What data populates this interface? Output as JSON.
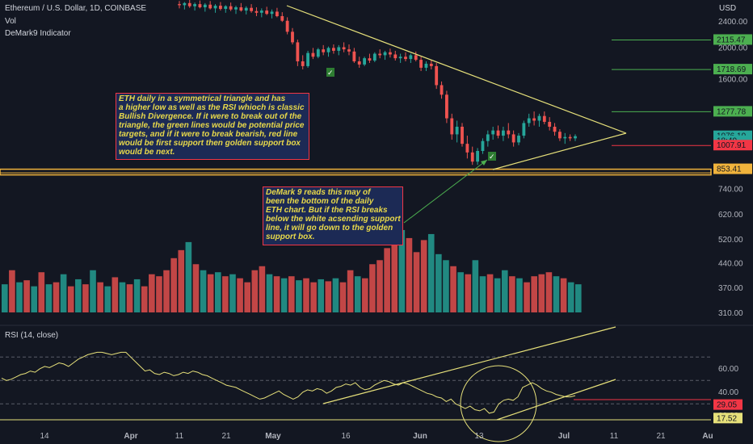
{
  "header": {
    "symbol": "Ethereum / U.S. Dollar, 1D, COINBASE",
    "vol_label": "Vol",
    "indicator_label": "DeMark9 Indicator"
  },
  "price_scale": {
    "currency": "USD"
  },
  "colors": {
    "background": "#131722",
    "up": "#26a69a",
    "down": "#ef5350",
    "triangle": "#e6e07a",
    "golden_support": "#f0b33c",
    "target_lines": "#4caf50",
    "support_red": "#f23645",
    "note_background": "#1c2a55",
    "note_text": "#e8d94a"
  },
  "annotations": {
    "note1": [
      "ETH daily in a symmetrical triangle and has",
      "a higher low as well as the RSI whioch is classic",
      "Bullish Divergence. If it were to break out of the",
      "triangle, the green lines would be potential price",
      "targets, and if it were to break bearish, red line",
      " would be first support then golden support box",
      "would be next."
    ],
    "note2": [
      "DeMark 9 reads this may of",
      "been the bottom of the daily",
      "ETH chart. But if the RSI breaks",
      "below the white acsending support",
      "line, it will go down to the golden",
      "support box."
    ]
  },
  "chart_data": [
    {
      "type": "candlestick",
      "title": "Ethereum / U.S. Dollar, 1D, COINBASE",
      "y_scale": "log",
      "ylim": [
        290,
        2800
      ],
      "y_ticks": [
        "2400.00",
        "2000.00",
        "1600.00",
        "740.00",
        "620.00",
        "520.00",
        "440.00",
        "370.00",
        "310.00"
      ],
      "x_tick_labels": [
        "14",
        "Apr",
        "11",
        "21",
        "May",
        "16",
        "Jun",
        "13",
        "Jul",
        "11",
        "21",
        "Au"
      ],
      "price_badges": [
        {
          "label": "2115.47",
          "value": 2115.47,
          "color": "#4caf50"
        },
        {
          "label": "1718.69",
          "value": 1718.69,
          "color": "#4caf50"
        },
        {
          "label": "1277.78",
          "value": 1277.78,
          "color": "#4caf50"
        },
        {
          "label": "1076.10",
          "value": 1076.1,
          "color": "#26a69a"
        },
        {
          "label": "18:40",
          "value": 1040,
          "color": "#26a69a"
        },
        {
          "label": "1007.91",
          "value": 1007.91,
          "color": "#f23645"
        },
        {
          "label": "853.41",
          "value": 853.41,
          "color": "#f0b33c"
        }
      ],
      "horizontal_lines": [
        {
          "value": 2115.47,
          "color": "#4caf50"
        },
        {
          "value": 1718.69,
          "color": "#4caf50"
        },
        {
          "value": 1277.78,
          "color": "#4caf50"
        },
        {
          "value": 1007.91,
          "color": "#f23645"
        }
      ],
      "support_box": {
        "low": 820,
        "high": 853.41,
        "color": "#f0b33c"
      },
      "candles": [
        {
          "o": 2720,
          "h": 2780,
          "l": 2640,
          "c": 2700
        },
        {
          "o": 2700,
          "h": 2760,
          "l": 2620,
          "c": 2740
        },
        {
          "o": 2740,
          "h": 2800,
          "l": 2650,
          "c": 2680
        },
        {
          "o": 2680,
          "h": 2750,
          "l": 2600,
          "c": 2720
        },
        {
          "o": 2720,
          "h": 2790,
          "l": 2640,
          "c": 2660
        },
        {
          "o": 2660,
          "h": 2740,
          "l": 2580,
          "c": 2710
        },
        {
          "o": 2710,
          "h": 2780,
          "l": 2620,
          "c": 2640
        },
        {
          "o": 2640,
          "h": 2720,
          "l": 2560,
          "c": 2690
        },
        {
          "o": 2690,
          "h": 2760,
          "l": 2600,
          "c": 2630
        },
        {
          "o": 2630,
          "h": 2700,
          "l": 2560,
          "c": 2680
        },
        {
          "o": 2680,
          "h": 2750,
          "l": 2590,
          "c": 2620
        },
        {
          "o": 2620,
          "h": 2690,
          "l": 2540,
          "c": 2660
        },
        {
          "o": 2660,
          "h": 2740,
          "l": 2580,
          "c": 2600
        },
        {
          "o": 2600,
          "h": 2680,
          "l": 2530,
          "c": 2650
        },
        {
          "o": 2650,
          "h": 2720,
          "l": 2560,
          "c": 2590
        },
        {
          "o": 2590,
          "h": 2660,
          "l": 2500,
          "c": 2560
        },
        {
          "o": 2560,
          "h": 2640,
          "l": 2480,
          "c": 2600
        },
        {
          "o": 2600,
          "h": 2670,
          "l": 2520,
          "c": 2540
        },
        {
          "o": 2540,
          "h": 2620,
          "l": 2460,
          "c": 2580
        },
        {
          "o": 2580,
          "h": 2650,
          "l": 2480,
          "c": 2500
        },
        {
          "o": 2500,
          "h": 2570,
          "l": 2400,
          "c": 2420
        },
        {
          "o": 2420,
          "h": 2480,
          "l": 2200,
          "c": 2240
        },
        {
          "o": 2240,
          "h": 2300,
          "l": 2050,
          "c": 2080
        },
        {
          "o": 2080,
          "h": 2120,
          "l": 1760,
          "c": 1820
        },
        {
          "o": 1820,
          "h": 1900,
          "l": 1720,
          "c": 1760
        },
        {
          "o": 1760,
          "h": 1960,
          "l": 1740,
          "c": 1930
        },
        {
          "o": 1930,
          "h": 2000,
          "l": 1850,
          "c": 1880
        },
        {
          "o": 1880,
          "h": 2000,
          "l": 1860,
          "c": 1980
        },
        {
          "o": 1980,
          "h": 2040,
          "l": 1900,
          "c": 1940
        },
        {
          "o": 1940,
          "h": 2020,
          "l": 1880,
          "c": 2000
        },
        {
          "o": 2000,
          "h": 2050,
          "l": 1920,
          "c": 1960
        },
        {
          "o": 1960,
          "h": 2040,
          "l": 1900,
          "c": 2010
        },
        {
          "o": 2010,
          "h": 2080,
          "l": 1940,
          "c": 1980
        },
        {
          "o": 1980,
          "h": 2050,
          "l": 1900,
          "c": 1950
        },
        {
          "o": 1950,
          "h": 2000,
          "l": 1800,
          "c": 1820
        },
        {
          "o": 1820,
          "h": 1880,
          "l": 1740,
          "c": 1780
        },
        {
          "o": 1780,
          "h": 1880,
          "l": 1760,
          "c": 1860
        },
        {
          "o": 1860,
          "h": 1920,
          "l": 1800,
          "c": 1830
        },
        {
          "o": 1830,
          "h": 1940,
          "l": 1810,
          "c": 1920
        },
        {
          "o": 1920,
          "h": 1980,
          "l": 1860,
          "c": 1900
        },
        {
          "o": 1900,
          "h": 1960,
          "l": 1840,
          "c": 1940
        },
        {
          "o": 1940,
          "h": 1990,
          "l": 1870,
          "c": 1910
        },
        {
          "o": 1910,
          "h": 1960,
          "l": 1830,
          "c": 1860
        },
        {
          "o": 1860,
          "h": 1920,
          "l": 1800,
          "c": 1880
        },
        {
          "o": 1880,
          "h": 1940,
          "l": 1820,
          "c": 1850
        },
        {
          "o": 1850,
          "h": 1920,
          "l": 1800,
          "c": 1900
        },
        {
          "o": 1900,
          "h": 1950,
          "l": 1820,
          "c": 1840
        },
        {
          "o": 1840,
          "h": 1880,
          "l": 1700,
          "c": 1740
        },
        {
          "o": 1740,
          "h": 1820,
          "l": 1700,
          "c": 1790
        },
        {
          "o": 1790,
          "h": 1840,
          "l": 1720,
          "c": 1760
        },
        {
          "o": 1760,
          "h": 1800,
          "l": 1500,
          "c": 1540
        },
        {
          "o": 1540,
          "h": 1580,
          "l": 1400,
          "c": 1440
        },
        {
          "o": 1440,
          "h": 1480,
          "l": 1180,
          "c": 1220
        },
        {
          "o": 1220,
          "h": 1260,
          "l": 1050,
          "c": 1090
        },
        {
          "o": 1090,
          "h": 1200,
          "l": 1030,
          "c": 1150
        },
        {
          "o": 1150,
          "h": 1180,
          "l": 1000,
          "c": 1020
        },
        {
          "o": 1020,
          "h": 1080,
          "l": 920,
          "c": 960
        },
        {
          "o": 960,
          "h": 1000,
          "l": 880,
          "c": 900
        },
        {
          "o": 900,
          "h": 990,
          "l": 880,
          "c": 970
        },
        {
          "o": 970,
          "h": 1060,
          "l": 950,
          "c": 1040
        },
        {
          "o": 1040,
          "h": 1120,
          "l": 1000,
          "c": 1090
        },
        {
          "o": 1090,
          "h": 1150,
          "l": 1050,
          "c": 1120
        },
        {
          "o": 1120,
          "h": 1160,
          "l": 1060,
          "c": 1080
        },
        {
          "o": 1080,
          "h": 1150,
          "l": 1040,
          "c": 1120
        },
        {
          "o": 1120,
          "h": 1180,
          "l": 1060,
          "c": 1090
        },
        {
          "o": 1090,
          "h": 1120,
          "l": 1000,
          "c": 1030
        },
        {
          "o": 1030,
          "h": 1100,
          "l": 1010,
          "c": 1080
        },
        {
          "o": 1080,
          "h": 1200,
          "l": 1060,
          "c": 1180
        },
        {
          "o": 1180,
          "h": 1260,
          "l": 1150,
          "c": 1220
        },
        {
          "o": 1220,
          "h": 1280,
          "l": 1160,
          "c": 1200
        },
        {
          "o": 1200,
          "h": 1260,
          "l": 1150,
          "c": 1240
        },
        {
          "o": 1240,
          "h": 1280,
          "l": 1170,
          "c": 1190
        },
        {
          "o": 1190,
          "h": 1230,
          "l": 1120,
          "c": 1150
        },
        {
          "o": 1150,
          "h": 1180,
          "l": 1080,
          "c": 1110
        },
        {
          "o": 1110,
          "h": 1130,
          "l": 1040,
          "c": 1060
        },
        {
          "o": 1060,
          "h": 1100,
          "l": 1020,
          "c": 1070
        },
        {
          "o": 1070,
          "h": 1090,
          "l": 1040,
          "c": 1060
        },
        {
          "o": 1060,
          "h": 1090,
          "l": 1040,
          "c": 1076
        }
      ],
      "volume": [
        280,
        420,
        300,
        320,
        260,
        400,
        280,
        300,
        380,
        260,
        330,
        280,
        420,
        300,
        260,
        350,
        300,
        280,
        330,
        260,
        380,
        360,
        420,
        540,
        620,
        700,
        480,
        420,
        380,
        400,
        360,
        380,
        340,
        300,
        420,
        460,
        380,
        360,
        340,
        360,
        320,
        340,
        300,
        330,
        310,
        340,
        300,
        420,
        360,
        340,
        480,
        520,
        640,
        900,
        820,
        740,
        600,
        720,
        780,
        580,
        520,
        460,
        400,
        380,
        520,
        360,
        380,
        340,
        420,
        360,
        340,
        300,
        360,
        380,
        400,
        360,
        340,
        300,
        280
      ],
      "volume_up": [
        true,
        false,
        true,
        false,
        true,
        false,
        true,
        false,
        true,
        false,
        true,
        false,
        true,
        false,
        true,
        false,
        true,
        false,
        true,
        false,
        false,
        false,
        false,
        false,
        false,
        true,
        false,
        true,
        false,
        true,
        false,
        true,
        false,
        false,
        false,
        false,
        true,
        false,
        true,
        false,
        true,
        false,
        false,
        true,
        false,
        true,
        false,
        false,
        true,
        false,
        false,
        false,
        false,
        false,
        true,
        false,
        false,
        false,
        true,
        true,
        true,
        false,
        true,
        false,
        true,
        true,
        false,
        true,
        true,
        false,
        true,
        false,
        false,
        false,
        false,
        true,
        false,
        true,
        true
      ]
    },
    {
      "type": "line",
      "title": "RSI (14, close)",
      "ylim": [
        15,
        95
      ],
      "y_ticks": [
        "60.00",
        "40.00",
        "20.00"
      ],
      "dashed_levels": [
        70,
        50,
        30
      ],
      "series": [
        {
          "values": [
            52,
            50,
            51,
            53,
            55,
            56,
            58,
            57,
            60,
            62,
            61,
            63,
            65,
            64,
            62,
            65,
            68,
            70,
            72,
            73,
            74,
            74,
            73,
            72,
            73,
            74,
            74,
            70,
            66,
            62,
            58,
            59,
            56,
            55,
            57,
            56,
            54,
            55,
            57,
            56,
            58,
            57,
            55,
            54,
            52,
            50,
            48,
            46,
            45,
            44,
            42,
            40,
            38,
            36,
            34,
            35,
            37,
            39,
            41,
            38,
            36,
            34,
            36,
            40,
            42,
            41,
            43,
            42,
            39,
            41,
            44,
            45,
            47,
            46,
            48,
            44,
            42,
            43,
            46,
            48,
            50,
            49,
            47,
            46,
            48,
            47,
            45,
            43,
            41,
            39,
            38,
            36,
            35,
            32,
            34,
            30,
            28,
            26,
            28,
            25,
            24,
            26,
            22,
            23,
            30,
            33,
            34,
            33,
            36,
            44,
            46,
            48,
            46,
            43,
            41,
            40,
            38,
            37,
            36,
            36,
            37
          ]
        }
      ],
      "badges": [
        {
          "label": "29.05",
          "value": 29.05,
          "color": "#f23645"
        },
        {
          "label": "17.52",
          "value": 17.52,
          "color": "#e6e07a"
        }
      ]
    }
  ]
}
